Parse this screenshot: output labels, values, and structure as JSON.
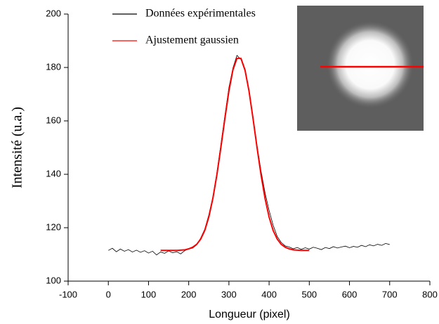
{
  "chart_data": {
    "type": "line",
    "xlabel": "Longueur (pixel)",
    "ylabel": "Intensité (u.a.)",
    "xlim": [
      -100,
      800
    ],
    "xticks": [
      -100,
      0,
      100,
      200,
      300,
      400,
      500,
      600,
      700,
      800
    ],
    "ylim": [
      100,
      200
    ],
    "yticks": [
      100,
      120,
      140,
      160,
      180,
      200
    ],
    "series": [
      {
        "name": "Données expérimentales",
        "color": "#000000",
        "x": [
          0,
          10,
          20,
          30,
          40,
          50,
          60,
          70,
          80,
          90,
          100,
          110,
          120,
          130,
          140,
          150,
          160,
          170,
          180,
          190,
          200,
          210,
          220,
          230,
          240,
          250,
          260,
          270,
          280,
          290,
          300,
          310,
          320,
          330,
          340,
          350,
          360,
          370,
          380,
          390,
          400,
          410,
          420,
          430,
          440,
          450,
          460,
          470,
          480,
          490,
          500,
          510,
          520,
          530,
          540,
          550,
          560,
          570,
          580,
          590,
          600,
          610,
          620,
          630,
          640,
          650,
          660,
          670,
          680,
          690,
          700
        ],
        "values": [
          111.5,
          112.3,
          111.0,
          112.0,
          111.2,
          111.8,
          110.9,
          111.6,
          110.8,
          111.4,
          110.5,
          111.2,
          109.8,
          110.9,
          110.4,
          111.3,
          110.6,
          111.0,
          110.2,
          111.4,
          112.0,
          112.4,
          113.6,
          116.2,
          119.5,
          124.8,
          131.5,
          140.5,
          151.2,
          162.0,
          172.5,
          179.8,
          184.5,
          183.0,
          178.6,
          170.8,
          161.5,
          150.8,
          141.2,
          133.0,
          126.5,
          121.0,
          116.8,
          114.5,
          113.2,
          112.8,
          112.1,
          112.6,
          111.9,
          112.5,
          112.0,
          112.7,
          112.3,
          111.8,
          112.6,
          112.2,
          112.9,
          112.4,
          112.8,
          113.1,
          112.5,
          113.0,
          112.7,
          113.4,
          112.9,
          113.6,
          113.2,
          113.8,
          113.4,
          114.1,
          113.7
        ]
      },
      {
        "name": "Ajustement gaussien",
        "color": "#ff0000",
        "x": [
          130,
          140,
          150,
          160,
          170,
          180,
          190,
          200,
          210,
          220,
          230,
          240,
          250,
          260,
          270,
          280,
          290,
          300,
          310,
          320,
          330,
          340,
          350,
          360,
          370,
          380,
          390,
          400,
          410,
          420,
          430,
          440,
          450,
          460,
          470,
          480,
          490,
          500
        ],
        "values": [
          111.5,
          111.5,
          111.5,
          111.5,
          111.5,
          111.6,
          111.7,
          112.1,
          112.7,
          113.8,
          115.8,
          119.0,
          124.0,
          130.9,
          139.7,
          150.0,
          160.9,
          171.2,
          179.1,
          183.4,
          183.4,
          179.1,
          171.2,
          160.9,
          150.0,
          139.7,
          130.9,
          124.0,
          119.0,
          115.8,
          113.8,
          112.7,
          112.1,
          111.7,
          111.6,
          111.5,
          111.5,
          111.5
        ]
      }
    ]
  }
}
